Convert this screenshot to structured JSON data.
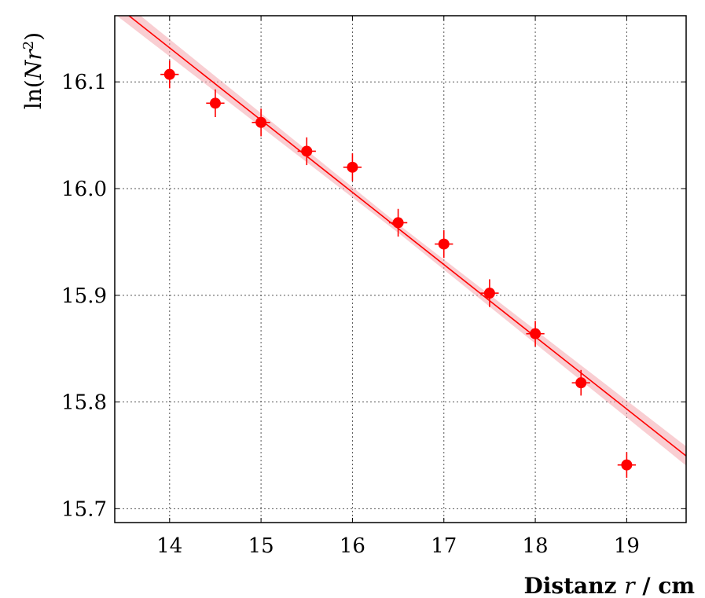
{
  "chart_data": {
    "type": "scatter",
    "title": "",
    "xlabel": "Distanz r / cm",
    "xlabel_parts": {
      "word": "Distanz",
      "var": "r",
      "unit": "/ cm"
    },
    "ylabel": "ln(Nr²)",
    "ylabel_parts": {
      "fn": "ln(",
      "var": "Nr",
      "sup": "2",
      "close": ")"
    },
    "xlim": [
      13.4,
      19.65
    ],
    "ylim": [
      15.687,
      16.162
    ],
    "grid": true,
    "x_ticks": [
      "14",
      "15",
      "16",
      "17",
      "18",
      "19"
    ],
    "y_ticks": [
      "15.7",
      "15.8",
      "15.9",
      "16.0",
      "16.1"
    ],
    "colors": {
      "series": "#ff0000",
      "band": "#f4a6ad"
    },
    "series": [
      {
        "x": [
          14.0,
          14.5,
          15.0,
          15.5,
          16.0,
          16.5,
          17.0,
          17.5,
          18.0,
          18.5,
          19.0
        ],
        "y": [
          16.107,
          16.08,
          16.062,
          16.035,
          16.02,
          15.968,
          15.948,
          15.902,
          15.864,
          15.818,
          15.741
        ],
        "yerr": [
          0.013,
          0.013,
          0.013,
          0.013,
          0.013,
          0.013,
          0.013,
          0.013,
          0.012,
          0.012,
          0.012
        ],
        "xerr": [
          0.1,
          0.1,
          0.1,
          0.1,
          0.1,
          0.1,
          0.1,
          0.1,
          0.1,
          0.1,
          0.1
        ]
      }
    ],
    "fit": {
      "slope": -0.0677,
      "intercept": 17.0797,
      "band_halfwidth": [
        0.004,
        0.009
      ]
    }
  }
}
